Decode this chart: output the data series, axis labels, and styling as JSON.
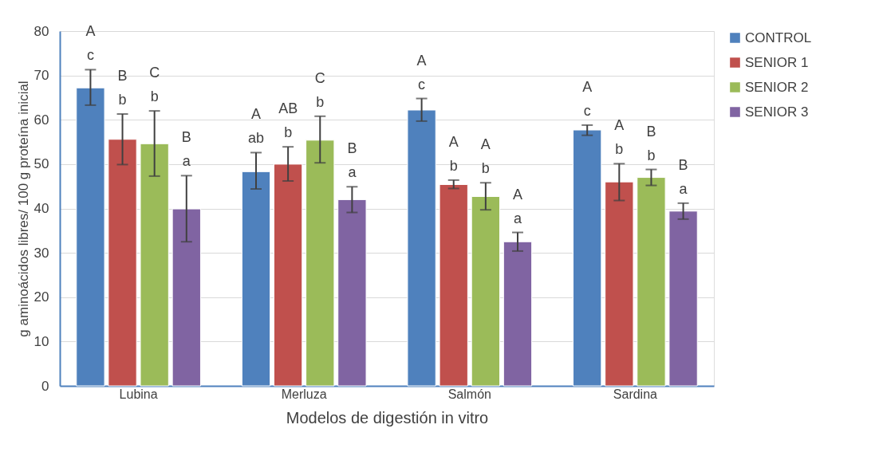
{
  "chart_data": {
    "type": "bar",
    "xlabel": "Modelos de digestión in vitro",
    "ylabel": "g aminoácidos libres/ 100 g proteína  inicial",
    "categories": [
      "Lubina",
      "Merluza",
      "Salmón",
      "Sardina"
    ],
    "ylim": [
      0,
      80
    ],
    "yticks": [
      0,
      10,
      20,
      30,
      40,
      50,
      60,
      70,
      80
    ],
    "grid": "y",
    "legend": "top right",
    "series": [
      {
        "name": "CONTROL",
        "color": "#4f81bd",
        "values": [
          67.2,
          48.3,
          62.2,
          57.7
        ],
        "errors": [
          [
            63.3,
            71.3
          ],
          [
            44.4,
            52.6
          ],
          [
            59.7,
            64.8
          ],
          [
            56.5,
            58.8
          ]
        ],
        "value_labels": [
          "A\nc",
          "A\nab",
          "A\nc",
          "A\nc"
        ]
      },
      {
        "name": "SENIOR 1",
        "color": "#c0504d",
        "values": [
          55.6,
          50.0,
          45.4,
          46.0
        ],
        "errors": [
          [
            49.9,
            61.3
          ],
          [
            46.2,
            53.9
          ],
          [
            44.5,
            46.4
          ],
          [
            41.8,
            50.1
          ]
        ],
        "value_labels": [
          "B\nb",
          "AB\nb",
          "A\nb",
          "A\nb"
        ]
      },
      {
        "name": "SENIOR 2",
        "color": "#9bbb59",
        "values": [
          54.6,
          55.4,
          42.7,
          47.0
        ],
        "errors": [
          [
            47.3,
            62.0
          ],
          [
            50.3,
            60.8
          ],
          [
            39.7,
            45.8
          ],
          [
            45.2,
            48.8
          ]
        ],
        "value_labels": [
          "C\nb",
          "C\nb",
          "A\nb",
          "B\nb"
        ]
      },
      {
        "name": "SENIOR 3",
        "color": "#8064a2",
        "values": [
          39.9,
          42.0,
          32.5,
          39.4
        ],
        "errors": [
          [
            32.5,
            47.4
          ],
          [
            39.1,
            44.9
          ],
          [
            30.4,
            34.6
          ],
          [
            37.6,
            41.2
          ]
        ],
        "value_labels": [
          "B\na",
          "B\na",
          "A\na",
          "B\na"
        ]
      }
    ]
  }
}
